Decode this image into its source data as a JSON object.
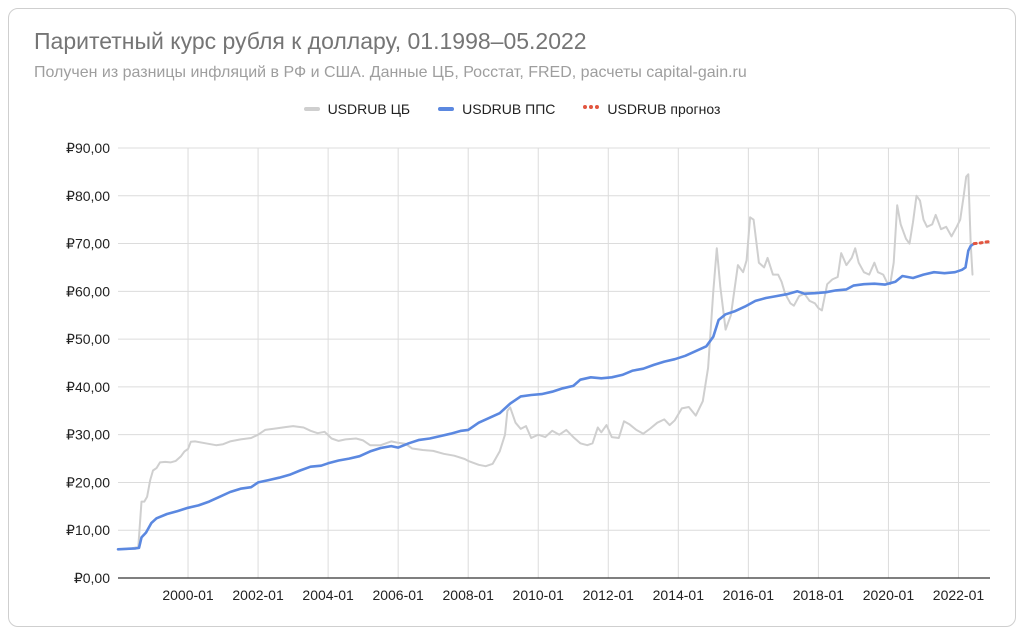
{
  "title": "Паритетный курс рубля к доллару, 01.1998–05.2022",
  "subtitle": "Получен из разницы инфляций в РФ и США. Данные ЦБ, Росстат, FRED, расчеты capital-gain.ru",
  "colors": {
    "cb": "#cfcfcf",
    "pps": "#5b88e0",
    "forecast": "#e2553f",
    "grid": "#dcdcdc",
    "axis": "#333333"
  },
  "chart_data": {
    "type": "line",
    "x_unit": "year (decimal)",
    "xlim": [
      1998.0,
      2022.9
    ],
    "ylim": [
      0,
      90
    ],
    "y_ticks": [
      0,
      10,
      20,
      30,
      40,
      50,
      60,
      70,
      80,
      90
    ],
    "y_tick_labels": [
      "₽0,00",
      "₽10,00",
      "₽20,00",
      "₽30,00",
      "₽40,00",
      "₽50,00",
      "₽60,00",
      "₽70,00",
      "₽80,00",
      "₽90,00"
    ],
    "x_ticks": [
      2000,
      2002,
      2004,
      2006,
      2008,
      2010,
      2012,
      2014,
      2016,
      2018,
      2020,
      2022
    ],
    "x_tick_labels": [
      "2000-01",
      "2002-01",
      "2004-01",
      "2006-01",
      "2008-01",
      "2010-01",
      "2012-01",
      "2014-01",
      "2016-01",
      "2018-01",
      "2020-01",
      "2022-01"
    ],
    "grid": true,
    "legend_position": "top",
    "series": [
      {
        "name": "USDRUB ЦБ",
        "style": "solid",
        "points": [
          [
            1998.0,
            6.0
          ],
          [
            1998.4,
            6.2
          ],
          [
            1998.58,
            6.5
          ],
          [
            1998.67,
            16.0
          ],
          [
            1998.75,
            16.0
          ],
          [
            1998.83,
            17.0
          ],
          [
            1998.92,
            20.5
          ],
          [
            1999.0,
            22.5
          ],
          [
            1999.1,
            23.0
          ],
          [
            1999.2,
            24.2
          ],
          [
            1999.35,
            24.3
          ],
          [
            1999.5,
            24.2
          ],
          [
            1999.65,
            24.5
          ],
          [
            1999.8,
            25.5
          ],
          [
            1999.9,
            26.5
          ],
          [
            2000.0,
            27.0
          ],
          [
            2000.08,
            28.5
          ],
          [
            2000.2,
            28.6
          ],
          [
            2000.5,
            28.2
          ],
          [
            2000.8,
            27.8
          ],
          [
            2001.0,
            28.0
          ],
          [
            2001.2,
            28.6
          ],
          [
            2001.5,
            29.0
          ],
          [
            2001.8,
            29.3
          ],
          [
            2002.0,
            30.0
          ],
          [
            2002.2,
            31.0
          ],
          [
            2002.5,
            31.3
          ],
          [
            2002.8,
            31.6
          ],
          [
            2003.0,
            31.8
          ],
          [
            2003.3,
            31.5
          ],
          [
            2003.5,
            30.8
          ],
          [
            2003.7,
            30.3
          ],
          [
            2003.9,
            30.6
          ],
          [
            2004.1,
            29.2
          ],
          [
            2004.3,
            28.7
          ],
          [
            2004.5,
            29.0
          ],
          [
            2004.8,
            29.2
          ],
          [
            2005.0,
            28.8
          ],
          [
            2005.2,
            27.8
          ],
          [
            2005.5,
            27.8
          ],
          [
            2005.8,
            28.6
          ],
          [
            2006.0,
            28.3
          ],
          [
            2006.2,
            28.1
          ],
          [
            2006.4,
            27.1
          ],
          [
            2006.7,
            26.8
          ],
          [
            2007.0,
            26.6
          ],
          [
            2007.3,
            26.0
          ],
          [
            2007.6,
            25.6
          ],
          [
            2007.9,
            24.9
          ],
          [
            2008.0,
            24.5
          ],
          [
            2008.3,
            23.7
          ],
          [
            2008.5,
            23.4
          ],
          [
            2008.7,
            23.9
          ],
          [
            2008.9,
            26.5
          ],
          [
            2009.05,
            30.0
          ],
          [
            2009.12,
            35.0
          ],
          [
            2009.2,
            35.7
          ],
          [
            2009.35,
            32.5
          ],
          [
            2009.5,
            31.2
          ],
          [
            2009.65,
            31.8
          ],
          [
            2009.8,
            29.3
          ],
          [
            2010.0,
            30.0
          ],
          [
            2010.2,
            29.5
          ],
          [
            2010.4,
            30.8
          ],
          [
            2010.6,
            30.0
          ],
          [
            2010.8,
            31.0
          ],
          [
            2011.0,
            29.5
          ],
          [
            2011.2,
            28.2
          ],
          [
            2011.4,
            27.8
          ],
          [
            2011.55,
            28.2
          ],
          [
            2011.7,
            31.5
          ],
          [
            2011.8,
            30.5
          ],
          [
            2011.95,
            32.0
          ],
          [
            2012.1,
            29.5
          ],
          [
            2012.3,
            29.3
          ],
          [
            2012.45,
            32.8
          ],
          [
            2012.6,
            32.2
          ],
          [
            2012.8,
            31.0
          ],
          [
            2013.0,
            30.2
          ],
          [
            2013.2,
            31.3
          ],
          [
            2013.4,
            32.5
          ],
          [
            2013.6,
            33.2
          ],
          [
            2013.75,
            32.0
          ],
          [
            2013.9,
            33.0
          ],
          [
            2014.1,
            35.5
          ],
          [
            2014.3,
            35.8
          ],
          [
            2014.5,
            34.0
          ],
          [
            2014.7,
            37.0
          ],
          [
            2014.85,
            44.0
          ],
          [
            2015.0,
            60.0
          ],
          [
            2015.1,
            69.0
          ],
          [
            2015.2,
            61.0
          ],
          [
            2015.35,
            52.0
          ],
          [
            2015.5,
            55.0
          ],
          [
            2015.7,
            65.5
          ],
          [
            2015.85,
            64.0
          ],
          [
            2015.95,
            66.5
          ],
          [
            2016.05,
            75.5
          ],
          [
            2016.15,
            75.0
          ],
          [
            2016.3,
            66.0
          ],
          [
            2016.45,
            65.0
          ],
          [
            2016.55,
            67.0
          ],
          [
            2016.7,
            63.5
          ],
          [
            2016.85,
            63.5
          ],
          [
            2016.95,
            62.0
          ],
          [
            2017.05,
            59.5
          ],
          [
            2017.2,
            57.5
          ],
          [
            2017.3,
            57.0
          ],
          [
            2017.45,
            59.0
          ],
          [
            2017.6,
            59.5
          ],
          [
            2017.75,
            58.0
          ],
          [
            2017.9,
            57.5
          ],
          [
            2018.0,
            56.5
          ],
          [
            2018.1,
            56.0
          ],
          [
            2018.25,
            61.5
          ],
          [
            2018.4,
            62.5
          ],
          [
            2018.55,
            63.0
          ],
          [
            2018.65,
            68.0
          ],
          [
            2018.8,
            65.5
          ],
          [
            2018.95,
            67.0
          ],
          [
            2019.05,
            69.0
          ],
          [
            2019.15,
            66.0
          ],
          [
            2019.3,
            64.0
          ],
          [
            2019.45,
            63.5
          ],
          [
            2019.6,
            66.0
          ],
          [
            2019.7,
            64.0
          ],
          [
            2019.85,
            63.5
          ],
          [
            2019.95,
            62.0
          ],
          [
            2020.05,
            61.5
          ],
          [
            2020.15,
            66.0
          ],
          [
            2020.25,
            78.0
          ],
          [
            2020.35,
            74.0
          ],
          [
            2020.5,
            71.0
          ],
          [
            2020.6,
            70.0
          ],
          [
            2020.7,
            74.5
          ],
          [
            2020.8,
            80.0
          ],
          [
            2020.9,
            79.0
          ],
          [
            2021.0,
            75.0
          ],
          [
            2021.1,
            73.5
          ],
          [
            2021.25,
            74.0
          ],
          [
            2021.35,
            76.0
          ],
          [
            2021.5,
            73.0
          ],
          [
            2021.65,
            73.5
          ],
          [
            2021.8,
            71.5
          ],
          [
            2021.95,
            73.5
          ],
          [
            2022.05,
            75.0
          ],
          [
            2022.15,
            80.0
          ],
          [
            2022.22,
            84.0
          ],
          [
            2022.28,
            84.5
          ],
          [
            2022.35,
            70.0
          ],
          [
            2022.4,
            63.5
          ]
        ]
      },
      {
        "name": "USDRUB ППС",
        "style": "solid",
        "points": [
          [
            1998.0,
            6.0
          ],
          [
            1998.5,
            6.2
          ],
          [
            1998.6,
            6.3
          ],
          [
            1998.67,
            8.5
          ],
          [
            1998.8,
            9.5
          ],
          [
            1998.95,
            11.5
          ],
          [
            1999.1,
            12.5
          ],
          [
            1999.4,
            13.4
          ],
          [
            1999.7,
            14.0
          ],
          [
            2000.0,
            14.7
          ],
          [
            2000.3,
            15.2
          ],
          [
            2000.6,
            16.0
          ],
          [
            2000.9,
            17.0
          ],
          [
            2001.2,
            18.0
          ],
          [
            2001.5,
            18.7
          ],
          [
            2001.8,
            19.0
          ],
          [
            2002.0,
            20.0
          ],
          [
            2002.3,
            20.5
          ],
          [
            2002.6,
            21.0
          ],
          [
            2002.9,
            21.6
          ],
          [
            2003.2,
            22.5
          ],
          [
            2003.5,
            23.3
          ],
          [
            2003.8,
            23.5
          ],
          [
            2004.0,
            24.0
          ],
          [
            2004.3,
            24.6
          ],
          [
            2004.6,
            25.0
          ],
          [
            2004.9,
            25.5
          ],
          [
            2005.2,
            26.5
          ],
          [
            2005.5,
            27.2
          ],
          [
            2005.8,
            27.6
          ],
          [
            2006.0,
            27.3
          ],
          [
            2006.3,
            28.2
          ],
          [
            2006.6,
            28.9
          ],
          [
            2006.9,
            29.2
          ],
          [
            2007.2,
            29.7
          ],
          [
            2007.5,
            30.2
          ],
          [
            2007.8,
            30.8
          ],
          [
            2008.0,
            31.0
          ],
          [
            2008.3,
            32.5
          ],
          [
            2008.6,
            33.5
          ],
          [
            2008.9,
            34.5
          ],
          [
            2009.2,
            36.5
          ],
          [
            2009.5,
            38.0
          ],
          [
            2009.8,
            38.3
          ],
          [
            2010.1,
            38.5
          ],
          [
            2010.4,
            39.0
          ],
          [
            2010.7,
            39.7
          ],
          [
            2011.0,
            40.2
          ],
          [
            2011.2,
            41.5
          ],
          [
            2011.5,
            42.0
          ],
          [
            2011.8,
            41.8
          ],
          [
            2012.1,
            42.0
          ],
          [
            2012.4,
            42.5
          ],
          [
            2012.7,
            43.4
          ],
          [
            2013.0,
            43.8
          ],
          [
            2013.3,
            44.6
          ],
          [
            2013.6,
            45.3
          ],
          [
            2013.9,
            45.8
          ],
          [
            2014.2,
            46.5
          ],
          [
            2014.5,
            47.5
          ],
          [
            2014.8,
            48.5
          ],
          [
            2015.0,
            50.5
          ],
          [
            2015.15,
            54.0
          ],
          [
            2015.35,
            55.2
          ],
          [
            2015.6,
            55.8
          ],
          [
            2015.9,
            56.8
          ],
          [
            2016.2,
            58.0
          ],
          [
            2016.5,
            58.6
          ],
          [
            2016.8,
            59.0
          ],
          [
            2017.1,
            59.4
          ],
          [
            2017.4,
            60.0
          ],
          [
            2017.6,
            59.5
          ],
          [
            2017.9,
            59.6
          ],
          [
            2018.2,
            59.8
          ],
          [
            2018.5,
            60.2
          ],
          [
            2018.8,
            60.4
          ],
          [
            2019.0,
            61.2
          ],
          [
            2019.3,
            61.5
          ],
          [
            2019.6,
            61.6
          ],
          [
            2019.9,
            61.4
          ],
          [
            2020.2,
            62.0
          ],
          [
            2020.4,
            63.2
          ],
          [
            2020.7,
            62.8
          ],
          [
            2021.0,
            63.5
          ],
          [
            2021.3,
            64.0
          ],
          [
            2021.6,
            63.8
          ],
          [
            2021.9,
            64.0
          ],
          [
            2022.1,
            64.5
          ],
          [
            2022.2,
            65.0
          ],
          [
            2022.28,
            68.5
          ],
          [
            2022.35,
            69.5
          ],
          [
            2022.45,
            70.0
          ]
        ]
      },
      {
        "name": "USDRUB прогноз",
        "style": "dotted",
        "points": [
          [
            2022.45,
            70.0
          ],
          [
            2022.6,
            70.1
          ],
          [
            2022.75,
            70.3
          ],
          [
            2022.9,
            70.4
          ]
        ]
      }
    ]
  }
}
